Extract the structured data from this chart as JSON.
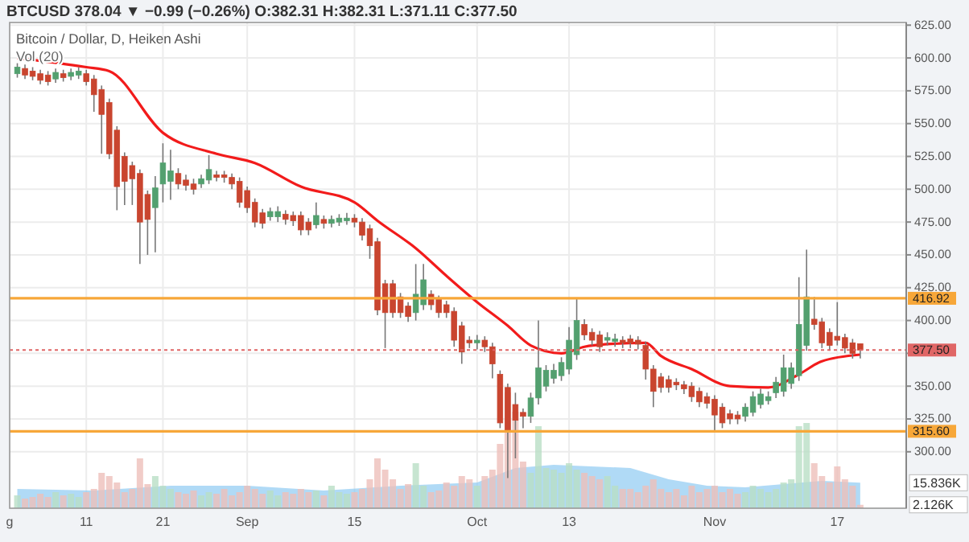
{
  "chart_data": {
    "type": "candlestick",
    "title": "BTCUSD 378.04 ▼ −0.99 (−0.26%) O:382.31 H:382.31 L:371.11 C:377.50",
    "subtitle": "Bitcoin / Dollar, D, Heiken Ashi",
    "annotations": [
      "Vol (20)"
    ],
    "xlim": [
      "--08-01",
      "--11-26"
    ],
    "xticks": [
      {
        "value": "--08-01",
        "label": "g"
      },
      {
        "value": "--08-11",
        "label": "11"
      },
      {
        "value": "--08-21",
        "label": "21"
      },
      {
        "value": "--09-01",
        "label": "Sep"
      },
      {
        "value": "--09-15",
        "label": "15"
      },
      {
        "value": "--10-01",
        "label": "Oct"
      },
      {
        "value": "--10-13",
        "label": "13"
      },
      {
        "value": "--11-01",
        "label": "Nov"
      },
      {
        "value": "--11-17",
        "label": "17"
      }
    ],
    "ylim": [
      257,
      627
    ],
    "yticks": [
      {
        "value": 300,
        "label": "300.00"
      },
      {
        "value": 325,
        "label": "325.00"
      },
      {
        "value": 350,
        "label": "350.00"
      },
      {
        "value": 375,
        "label": null
      },
      {
        "value": 400,
        "label": "400.00"
      },
      {
        "value": 425,
        "label": "425.00"
      },
      {
        "value": 450,
        "label": "450.00"
      },
      {
        "value": 475,
        "label": "475.00"
      },
      {
        "value": 500,
        "label": "500.00"
      },
      {
        "value": 525,
        "label": "525.00"
      },
      {
        "value": 550,
        "label": "550.00"
      },
      {
        "value": 575,
        "label": "575.00"
      },
      {
        "value": 600,
        "label": "600.00"
      },
      {
        "value": 625,
        "label": "625.00"
      }
    ],
    "y2lim": [
      0,
      302
    ],
    "y2ticks": [
      {
        "value": 15.836,
        "label": "15.836K"
      },
      {
        "value": 2.126,
        "label": "2.126K"
      }
    ],
    "grid": true,
    "ref_lines": [
      {
        "axis": "y",
        "value": 416.92,
        "label": "416.92",
        "color": "#f7a739",
        "line_style": "solid"
      },
      {
        "axis": "y",
        "value": 315.6,
        "label": "315.60",
        "color": "#f7a739",
        "line_style": "solid"
      },
      {
        "axis": "y",
        "value": 377.5,
        "label": "377.50",
        "color": "#e06666",
        "line_style": "dotted"
      }
    ],
    "series": [
      {
        "type": "area",
        "axis": "y2",
        "color": "#8ecbf2",
        "x": [
          "--08-02",
          "--08-12",
          "--08-22",
          "--09-01",
          "--09-11",
          "--09-21",
          "--10-01",
          "--10-06",
          "--10-11",
          "--10-21",
          "--10-26",
          "--10-31",
          "--11-05",
          "--11-10",
          "--11-15",
          "--11-20"
        ],
        "values": [
          12,
          11,
          14,
          14,
          11,
          14,
          16,
          25,
          27,
          25,
          18,
          14,
          13,
          15,
          17,
          15.836
        ]
      },
      {
        "type": "bar",
        "axis": "y2",
        "color": "#b9dfc5",
        "x": [
          "--08-02",
          "--08-07",
          "--08-09",
          "--08-10",
          "--08-20",
          "--08-21",
          "--08-22",
          "--08-26",
          "--08-27",
          "--09-04",
          "--09-05",
          "--09-10",
          "--09-12",
          "--09-13",
          "--09-14",
          "--09-23",
          "--09-24",
          "--10-01",
          "--10-08",
          "--10-09",
          "--10-10",
          "--10-11",
          "--10-12",
          "--10-13",
          "--10-14",
          "--10-18",
          "--10-19",
          "--11-05",
          "--11-06",
          "--11-07",
          "--11-08",
          "--11-09",
          "--11-10",
          "--11-11",
          "--11-12",
          "--11-13"
        ],
        "values": [
          8,
          10,
          9,
          7,
          20,
          14,
          12,
          8,
          10,
          11,
          8,
          11,
          14,
          10,
          9,
          28,
          14,
          14,
          22,
          51,
          25,
          24,
          22,
          28,
          24,
          20,
          14,
          10,
          14,
          12,
          10,
          12,
          16,
          18,
          51,
          53
        ]
      },
      {
        "type": "bar",
        "axis": "y2",
        "color": "#eebfba",
        "x": [
          "--08-03",
          "--08-04",
          "--08-05",
          "--08-06",
          "--08-08",
          "--08-11",
          "--08-12",
          "--08-13",
          "--08-14",
          "--08-15",
          "--08-16",
          "--08-17",
          "--08-18",
          "--08-19",
          "--08-23",
          "--08-24",
          "--08-25",
          "--08-28",
          "--08-29",
          "--08-30",
          "--08-31",
          "--09-01",
          "--09-02",
          "--09-03",
          "--09-06",
          "--09-07",
          "--09-08",
          "--09-09",
          "--09-11",
          "--09-15",
          "--09-16",
          "--09-17",
          "--09-18",
          "--09-19",
          "--09-20",
          "--09-21",
          "--09-22",
          "--09-25",
          "--09-26",
          "--09-27",
          "--09-28",
          "--09-29",
          "--09-30",
          "--10-02",
          "--10-03",
          "--10-04",
          "--10-05",
          "--10-06",
          "--10-07",
          "--10-15",
          "--10-16",
          "--10-17",
          "--10-20",
          "--10-21",
          "--10-22",
          "--10-23",
          "--10-24",
          "--10-25",
          "--10-26",
          "--10-27",
          "--10-28",
          "--10-29",
          "--10-30",
          "--10-31",
          "--11-01",
          "--11-02",
          "--11-03",
          "--11-04",
          "--11-14",
          "--11-15",
          "--11-16",
          "--11-17",
          "--11-18",
          "--11-19",
          "--11-20"
        ],
        "values": [
          6,
          7,
          9,
          7,
          8,
          10,
          12,
          22,
          20,
          16,
          10,
          12,
          31,
          15,
          10,
          9,
          11,
          9,
          12,
          8,
          10,
          14,
          12,
          9,
          10,
          9,
          12,
          10,
          8,
          10,
          12,
          18,
          31,
          24,
          18,
          12,
          15,
          10,
          11,
          16,
          14,
          20,
          18,
          20,
          24,
          40,
          72,
          60,
          29,
          22,
          20,
          18,
          12,
          12,
          10,
          14,
          18,
          12,
          10,
          12,
          8,
          14,
          10,
          12,
          14,
          10,
          12,
          9,
          28,
          20,
          16,
          26,
          18,
          14,
          2.126
        ]
      },
      {
        "type": "line",
        "color": "#f21b1b",
        "x": [
          "--08-02",
          "--08-11",
          "--08-14",
          "--08-21",
          "--08-28",
          "--09-02",
          "--09-08",
          "--09-15",
          "--09-18",
          "--09-23",
          "--09-27",
          "--10-01",
          "--10-05",
          "--10-08",
          "--10-12",
          "--10-15",
          "--10-18",
          "--10-23",
          "--10-25",
          "--10-29",
          "--11-03",
          "--11-08",
          "--11-12",
          "--11-15",
          "--11-20"
        ],
        "values": [
          600,
          593,
          590,
          543,
          527,
          520,
          502,
          490,
          476,
          455,
          434,
          414,
          396,
          381,
          375,
          380,
          382,
          383,
          373,
          363,
          350,
          349,
          359,
          369,
          374
        ]
      },
      {
        "color": "#53a06f",
        "x": [
          "--08-02",
          "--08-07",
          "--08-09",
          "--08-10",
          "--08-20",
          "--08-21",
          "--08-22",
          "--08-26",
          "--08-27",
          "--09-04",
          "--09-05",
          "--09-10",
          "--09-12",
          "--09-13",
          "--09-14",
          "--09-23",
          "--09-24",
          "--10-01",
          "--10-08",
          "--10-09",
          "--10-10",
          "--10-11",
          "--10-12",
          "--10-13",
          "--10-14",
          "--10-18",
          "--10-19",
          "--11-05",
          "--11-06",
          "--11-07",
          "--11-08",
          "--11-09",
          "--11-10",
          "--11-11",
          "--11-12",
          "--11-13"
        ],
        "ohlc": [
          [
            588,
            596,
            585,
            593
          ],
          [
            584,
            592,
            581,
            589
          ],
          [
            586,
            592,
            583,
            589
          ],
          [
            587,
            593,
            584,
            590
          ],
          [
            486,
            510,
            452,
            501
          ],
          [
            504,
            535,
            490,
            520
          ],
          [
            506,
            530,
            492,
            514
          ],
          [
            504,
            511,
            501,
            508
          ],
          [
            507,
            526,
            504,
            515
          ],
          [
            479,
            486,
            476,
            483
          ],
          [
            479,
            487,
            475,
            483
          ],
          [
            473,
            490,
            470,
            480
          ],
          [
            474,
            480,
            471,
            477
          ],
          [
            475,
            481,
            472,
            478
          ],
          [
            476,
            482,
            473,
            478
          ],
          [
            406,
            443,
            400,
            420
          ],
          [
            412,
            443,
            408,
            431
          ],
          [
            383,
            389,
            378,
            385
          ],
          [
            327,
            345,
            322,
            341
          ],
          [
            341,
            400,
            336,
            364
          ],
          [
            350,
            366,
            346,
            362
          ],
          [
            356,
            367,
            352,
            362
          ],
          [
            358,
            372,
            354,
            368
          ],
          [
            363,
            395,
            359,
            385
          ],
          [
            374,
            417,
            370,
            400
          ],
          [
            385,
            391,
            381,
            387
          ],
          [
            384,
            390,
            380,
            386
          ],
          [
            327,
            337,
            323,
            334
          ],
          [
            330,
            346,
            327,
            342
          ],
          [
            336,
            348,
            333,
            344
          ],
          [
            339,
            346,
            336,
            342
          ],
          [
            345,
            357,
            341,
            353
          ],
          [
            346,
            374,
            342,
            364
          ],
          [
            352,
            368,
            348,
            364
          ],
          [
            358,
            433,
            354,
            397
          ],
          [
            381,
            454,
            377,
            418
          ]
        ]
      },
      {
        "color": "#c9452f",
        "x": [
          "--08-03",
          "--08-04",
          "--08-05",
          "--08-06",
          "--08-08",
          "--08-11",
          "--08-12",
          "--08-13",
          "--08-14",
          "--08-15",
          "--08-16",
          "--08-17",
          "--08-18",
          "--08-19",
          "--08-23",
          "--08-24",
          "--08-25",
          "--08-28",
          "--08-29",
          "--08-30",
          "--08-31",
          "--09-01",
          "--09-02",
          "--09-03",
          "--09-06",
          "--09-07",
          "--09-08",
          "--09-09",
          "--09-11",
          "--09-15",
          "--09-16",
          "--09-17",
          "--09-18",
          "--09-19",
          "--09-20",
          "--09-21",
          "--09-22",
          "--09-25",
          "--09-26",
          "--09-27",
          "--09-28",
          "--09-29",
          "--09-30",
          "--10-02",
          "--10-03",
          "--10-04",
          "--10-05",
          "--10-06",
          "--10-07",
          "--10-15",
          "--10-16",
          "--10-17",
          "--10-20",
          "--10-21",
          "--10-22",
          "--10-23",
          "--10-24",
          "--10-25",
          "--10-26",
          "--10-27",
          "--10-28",
          "--10-29",
          "--10-30",
          "--10-31",
          "--11-01",
          "--11-02",
          "--11-03",
          "--11-04",
          "--11-14",
          "--11-15",
          "--11-16",
          "--11-17",
          "--11-18",
          "--11-19",
          "--11-20"
        ],
        "ohlc": [
          [
            592,
            595,
            584,
            587
          ],
          [
            590,
            593,
            583,
            586
          ],
          [
            588,
            591,
            580,
            583
          ],
          [
            587,
            590,
            579,
            582
          ],
          [
            588,
            591,
            582,
            585
          ],
          [
            588,
            591,
            579,
            582
          ],
          [
            584,
            587,
            559,
            572
          ],
          [
            576,
            579,
            527,
            557
          ],
          [
            566,
            569,
            523,
            527
          ],
          [
            545,
            548,
            484,
            502
          ],
          [
            525,
            528,
            488,
            506
          ],
          [
            518,
            521,
            488,
            508
          ],
          [
            512,
            515,
            443,
            475
          ],
          [
            496,
            499,
            450,
            477
          ],
          [
            512,
            516,
            500,
            504
          ],
          [
            507,
            511,
            499,
            503
          ],
          [
            504,
            508,
            496,
            500
          ],
          [
            511,
            514,
            506,
            509
          ],
          [
            511,
            514,
            505,
            509
          ],
          [
            509,
            512,
            500,
            504
          ],
          [
            506,
            509,
            486,
            490
          ],
          [
            499,
            502,
            482,
            486
          ],
          [
            490,
            493,
            471,
            475
          ],
          [
            482,
            485,
            470,
            474
          ],
          [
            481,
            484,
            473,
            477
          ],
          [
            480,
            483,
            472,
            476
          ],
          [
            480,
            483,
            465,
            469
          ],
          [
            475,
            478,
            465,
            469
          ],
          [
            477,
            480,
            470,
            474
          ],
          [
            478,
            481,
            471,
            475
          ],
          [
            475,
            478,
            461,
            465
          ],
          [
            470,
            473,
            447,
            457
          ],
          [
            460,
            463,
            404,
            408
          ],
          [
            428,
            431,
            379,
            406
          ],
          [
            428,
            431,
            402,
            406
          ],
          [
            418,
            421,
            402,
            406
          ],
          [
            411,
            414,
            399,
            403
          ],
          [
            420,
            423,
            408,
            412
          ],
          [
            416,
            419,
            402,
            406
          ],
          [
            412,
            415,
            402,
            406
          ],
          [
            407,
            410,
            380,
            385
          ],
          [
            396,
            399,
            367,
            376
          ],
          [
            385,
            388,
            379,
            383
          ],
          [
            385,
            388,
            376,
            380
          ],
          [
            380,
            383,
            356,
            367
          ],
          [
            359,
            362,
            318,
            322
          ],
          [
            349,
            352,
            280,
            316
          ],
          [
            336,
            345,
            295,
            324
          ],
          [
            330,
            333,
            318,
            327
          ],
          [
            397,
            401,
            385,
            389
          ],
          [
            391,
            394,
            381,
            385
          ],
          [
            389,
            392,
            376,
            380
          ],
          [
            385,
            388,
            379,
            383
          ],
          [
            386,
            389,
            379,
            383
          ],
          [
            385,
            388,
            378,
            382
          ],
          [
            381,
            384,
            355,
            363
          ],
          [
            363,
            366,
            334,
            346
          ],
          [
            357,
            360,
            345,
            349
          ],
          [
            355,
            358,
            345,
            349
          ],
          [
            353,
            356,
            347,
            351
          ],
          [
            351,
            354,
            344,
            348
          ],
          [
            350,
            353,
            338,
            342
          ],
          [
            346,
            349,
            334,
            338
          ],
          [
            342,
            345,
            333,
            337
          ],
          [
            340,
            343,
            316,
            328
          ],
          [
            334,
            337,
            318,
            322
          ],
          [
            329,
            332,
            321,
            325
          ],
          [
            328,
            331,
            321,
            325
          ],
          [
            401,
            418,
            393,
            397
          ],
          [
            399,
            402,
            379,
            383
          ],
          [
            391,
            394,
            377,
            381
          ],
          [
            388,
            414,
            381,
            385
          ],
          [
            387,
            390,
            375,
            379
          ],
          [
            383,
            386,
            371,
            375
          ],
          [
            382.31,
            382.31,
            371.11,
            377.5
          ]
        ]
      }
    ]
  }
}
